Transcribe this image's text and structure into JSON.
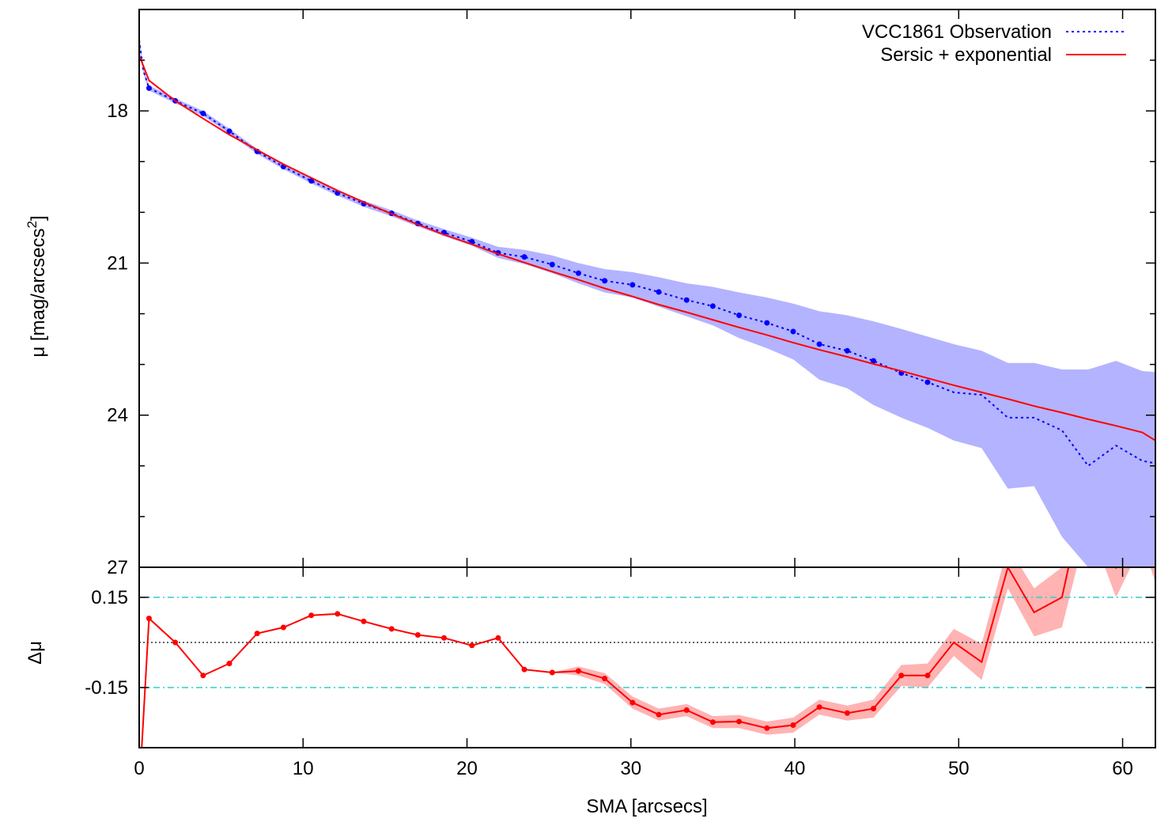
{
  "chart_data": {
    "type": "line",
    "x_axis": {
      "label": "SMA [arcsecs]",
      "range": [
        0,
        62
      ],
      "ticks": [
        0,
        10,
        20,
        30,
        40,
        50,
        60
      ],
      "tick_labels": [
        "0",
        "10",
        "20",
        "30",
        "40",
        "50",
        "60"
      ]
    },
    "top_panel": {
      "ylabel": "μ [mag/arcsecs",
      "ylabel_sup": "2",
      "ylabel_end": "]",
      "ylim": [
        16.0,
        27.0
      ],
      "inverted": true,
      "y_ticks": [
        18,
        21,
        24,
        27
      ],
      "y_tick_labels": [
        "18",
        "21",
        "24",
        "27"
      ],
      "legend_position": "top-right",
      "series": [
        {
          "name": "VCC1861 Observation",
          "style": "dotted",
          "color": "#0000ff",
          "band_color": "#b3b3ff",
          "x": [
            0.0,
            0.25,
            0.6,
            2.2,
            3.9,
            5.5,
            7.2,
            8.8,
            10.5,
            12.1,
            13.7,
            15.4,
            17.0,
            18.6,
            20.3,
            21.9,
            23.5,
            25.2,
            26.8,
            28.4,
            30.1,
            31.7,
            33.4,
            35.0,
            36.6,
            38.3,
            39.9,
            41.5,
            43.2,
            44.8,
            46.5,
            48.1,
            49.7,
            51.4,
            53.0,
            54.6,
            56.3,
            57.9,
            59.6,
            61.2,
            62.0
          ],
          "y": [
            16.6,
            17.2,
            17.55,
            17.8,
            18.05,
            18.4,
            18.8,
            19.1,
            19.38,
            19.62,
            19.83,
            20.02,
            20.22,
            20.4,
            20.58,
            20.8,
            20.88,
            21.03,
            21.2,
            21.35,
            21.43,
            21.57,
            21.73,
            21.85,
            22.03,
            22.18,
            22.35,
            22.6,
            22.73,
            22.93,
            23.17,
            23.35,
            23.55,
            23.6,
            24.05,
            24.05,
            24.3,
            25.0,
            24.6,
            24.9,
            24.95
          ],
          "band_upper": [
            16.5,
            17.15,
            17.5,
            17.75,
            18.0,
            18.35,
            18.75,
            19.05,
            19.33,
            19.57,
            19.77,
            19.96,
            20.16,
            20.33,
            20.5,
            20.68,
            20.74,
            20.85,
            21.0,
            21.12,
            21.18,
            21.28,
            21.4,
            21.47,
            21.58,
            21.68,
            21.8,
            21.95,
            22.03,
            22.15,
            22.3,
            22.45,
            22.6,
            22.73,
            22.97,
            22.97,
            23.1,
            23.1,
            22.93,
            23.13,
            23.15
          ],
          "band_lower": [
            16.7,
            17.25,
            17.6,
            17.85,
            18.1,
            18.45,
            18.85,
            19.15,
            19.43,
            19.67,
            19.89,
            20.08,
            20.28,
            20.47,
            20.66,
            20.9,
            21.02,
            21.2,
            21.4,
            21.58,
            21.68,
            21.86,
            22.05,
            22.23,
            22.48,
            22.68,
            22.9,
            23.3,
            23.47,
            23.8,
            24.05,
            24.25,
            24.5,
            24.65,
            25.45,
            25.4,
            26.4,
            27.0,
            27.0,
            27.0,
            27.0
          ]
        },
        {
          "name": "Sersic + exponential",
          "style": "solid",
          "color": "#ff0000",
          "x": [
            0.0,
            0.6,
            2.2,
            3.9,
            5.5,
            7.2,
            8.8,
            10.5,
            12.1,
            13.7,
            15.4,
            17.0,
            18.6,
            20.3,
            21.9,
            23.5,
            25.2,
            26.8,
            28.4,
            30.1,
            31.7,
            33.4,
            35.0,
            36.6,
            38.3,
            39.9,
            41.5,
            43.2,
            44.8,
            46.5,
            48.1,
            49.7,
            51.4,
            53.0,
            54.6,
            56.3,
            57.9,
            59.6,
            61.2,
            62.0
          ],
          "y": [
            16.9,
            17.4,
            17.8,
            18.15,
            18.47,
            18.77,
            19.05,
            19.32,
            19.57,
            19.8,
            20.03,
            20.24,
            20.44,
            20.63,
            20.82,
            20.99,
            21.17,
            21.33,
            21.5,
            21.66,
            21.82,
            21.97,
            22.12,
            22.27,
            22.42,
            22.57,
            22.71,
            22.85,
            22.99,
            23.13,
            23.27,
            23.41,
            23.55,
            23.68,
            23.82,
            23.95,
            24.08,
            24.21,
            24.34,
            24.5
          ]
        }
      ]
    },
    "bottom_panel": {
      "ylabel": "Δμ",
      "ylim": [
        -0.35,
        0.25
      ],
      "y_ticks": [
        0.15,
        -0.15
      ],
      "y_tick_labels": [
        "0.15",
        "-0.15"
      ],
      "reference_lines": [
        {
          "y": 0.15,
          "style": "dash-dot",
          "color": "#33cccc"
        },
        {
          "y": 0.0,
          "style": "dotted",
          "color": "#333333"
        },
        {
          "y": -0.15,
          "style": "dash-dot",
          "color": "#33cccc"
        }
      ],
      "series": {
        "color": "#ff0000",
        "band_color": "#ffb3b3",
        "x": [
          0.0,
          0.6,
          2.2,
          3.9,
          5.5,
          7.2,
          8.8,
          10.5,
          12.1,
          13.7,
          15.4,
          17.0,
          18.6,
          20.3,
          21.9,
          23.5,
          25.2,
          26.8,
          28.4,
          30.1,
          31.7,
          33.4,
          35.0,
          36.6,
          38.3,
          39.9,
          41.5,
          43.2,
          44.8,
          46.5,
          48.1,
          49.7,
          51.4,
          53.0,
          54.6,
          56.3,
          57.9,
          59.6,
          61.2,
          62.0
        ],
        "y": [
          -0.5,
          0.08,
          0.0,
          -0.11,
          -0.07,
          0.03,
          0.05,
          0.09,
          0.095,
          0.07,
          0.045,
          0.025,
          0.015,
          -0.01,
          0.015,
          -0.09,
          -0.1,
          -0.095,
          -0.12,
          -0.2,
          -0.24,
          -0.225,
          -0.265,
          -0.263,
          -0.285,
          -0.275,
          -0.215,
          -0.235,
          -0.22,
          -0.11,
          -0.11,
          0.0,
          -0.065,
          0.25,
          0.1,
          0.15,
          0.55,
          0.25,
          0.45,
          0.35
        ],
        "band": [
          0.0,
          0.0,
          0.0,
          0.0,
          0.0,
          0.0,
          0.0,
          0.0,
          0.0,
          0.0,
          0.0,
          0.0,
          0.0,
          0.0,
          0.0,
          0.0,
          0.0,
          0.015,
          0.018,
          0.02,
          0.02,
          0.02,
          0.02,
          0.022,
          0.022,
          0.025,
          0.025,
          0.025,
          0.03,
          0.035,
          0.04,
          0.045,
          0.06,
          0.07,
          0.08,
          0.1,
          0.15,
          0.1,
          0.12,
          0.15
        ]
      }
    }
  }
}
